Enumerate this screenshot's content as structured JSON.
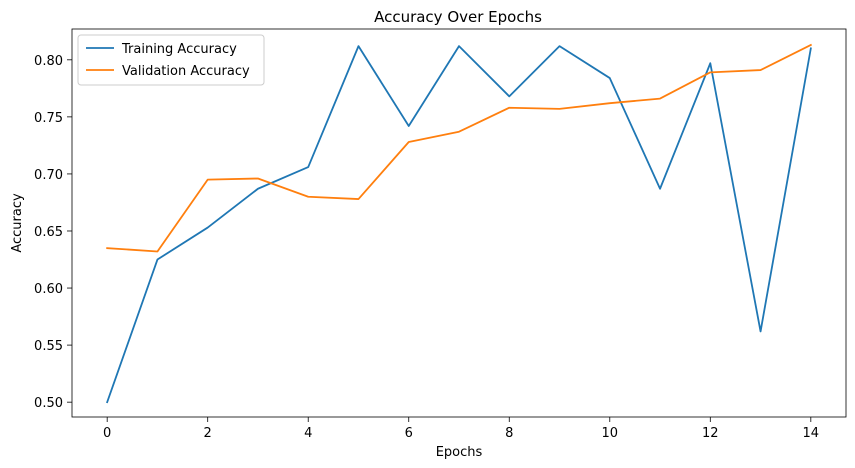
{
  "chart_data": {
    "type": "line",
    "title": "Accuracy Over Epochs",
    "xlabel": "Epochs",
    "ylabel": "Accuracy",
    "xlim": [
      -0.7,
      14.7
    ],
    "ylim": [
      0.487,
      0.827
    ],
    "xticks": [
      0,
      2,
      4,
      6,
      8,
      10,
      12,
      14
    ],
    "xtick_labels": [
      "0",
      "2",
      "4",
      "6",
      "8",
      "10",
      "12",
      "14"
    ],
    "yticks": [
      0.5,
      0.55,
      0.6,
      0.65,
      0.7,
      0.75,
      0.8
    ],
    "ytick_labels": [
      "0.50",
      "0.55",
      "0.60",
      "0.65",
      "0.70",
      "0.75",
      "0.80"
    ],
    "grid": false,
    "legend_position": "top-left",
    "x": [
      0,
      1,
      2,
      3,
      4,
      5,
      6,
      7,
      8,
      9,
      10,
      11,
      12,
      13,
      14
    ],
    "series": [
      {
        "name": "Training Accuracy",
        "color": "#1f77b4",
        "values": [
          0.5,
          0.625,
          0.653,
          0.687,
          0.706,
          0.812,
          0.742,
          0.812,
          0.768,
          0.812,
          0.784,
          0.687,
          0.797,
          0.562,
          0.81
        ]
      },
      {
        "name": "Validation Accuracy",
        "color": "#ff7f0e",
        "values": [
          0.635,
          0.632,
          0.695,
          0.696,
          0.68,
          0.678,
          0.728,
          0.737,
          0.758,
          0.757,
          0.762,
          0.766,
          0.789,
          0.791,
          0.813
        ]
      }
    ]
  }
}
